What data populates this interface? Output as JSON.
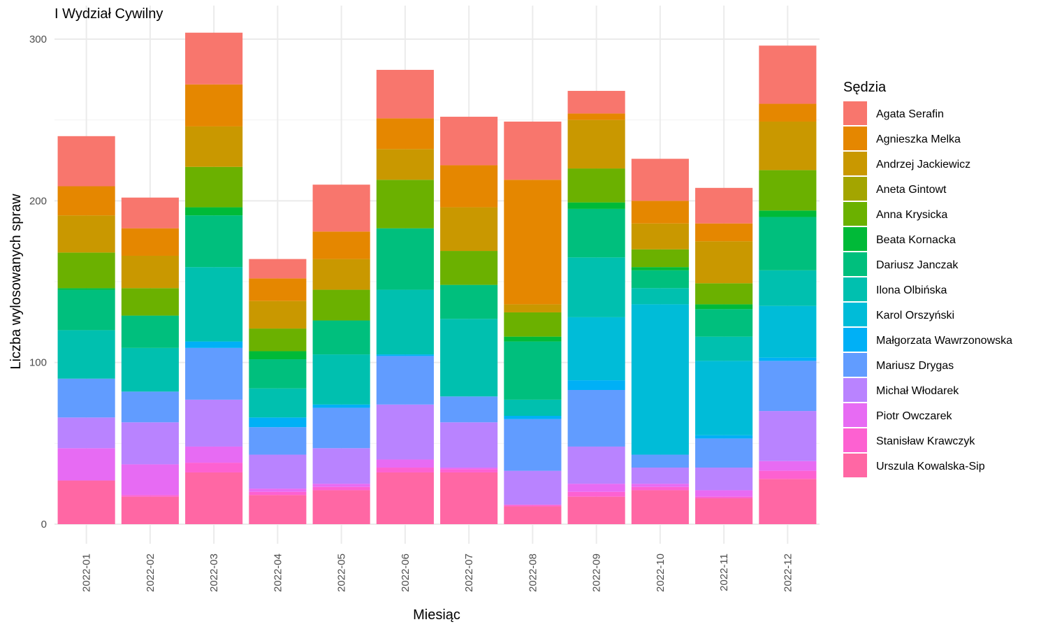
{
  "chart_data": {
    "type": "bar",
    "stacked": true,
    "title": "I Wydział Cywilny",
    "xlabel": "Miesiąc",
    "ylabel": "Liczba wylosowanych spraw",
    "ylim": [
      0,
      320
    ],
    "yticks": [
      0,
      100,
      200,
      300
    ],
    "grid": true,
    "legend_title": "Sędzia",
    "legend_position": "right",
    "categories": [
      "2022-01",
      "2022-02",
      "2022-03",
      "2022-04",
      "2022-05",
      "2022-06",
      "2022-07",
      "2022-08",
      "2022-09",
      "2022-10",
      "2022-11",
      "2022-12"
    ],
    "series": [
      {
        "name": "Agata Serafin",
        "color": "#F8766D",
        "values": [
          31,
          19,
          32,
          12,
          29,
          30,
          30,
          36,
          14,
          26,
          22,
          36
        ]
      },
      {
        "name": "Agnieszka Melka",
        "color": "#E58700",
        "values": [
          18,
          17,
          26,
          14,
          17,
          19,
          26,
          77,
          4,
          14,
          11,
          11
        ]
      },
      {
        "name": "Andrzej Jackiewicz",
        "color": "#C99800",
        "values": [
          23,
          20,
          25,
          17,
          19,
          19,
          27,
          5,
          30,
          16,
          26,
          30
        ]
      },
      {
        "name": "Aneta Gintowt",
        "color": "#A3A500",
        "values": [
          0,
          0,
          0,
          0,
          0,
          0,
          0,
          0,
          0,
          0,
          0,
          0
        ]
      },
      {
        "name": "Anna Krysicka",
        "color": "#6BB100",
        "values": [
          22,
          17,
          25,
          14,
          19,
          30,
          21,
          15,
          21,
          11,
          13,
          25
        ]
      },
      {
        "name": "Beata Kornacka",
        "color": "#00BA38",
        "values": [
          1,
          0,
          5,
          5,
          0,
          0,
          0,
          3,
          4,
          2,
          3,
          4
        ]
      },
      {
        "name": "Dariusz Janczak",
        "color": "#00BF7D",
        "values": [
          25,
          20,
          32,
          18,
          21,
          38,
          21,
          36,
          30,
          11,
          17,
          33
        ]
      },
      {
        "name": "Ilona Olbińska",
        "color": "#00C0AF",
        "values": [
          30,
          27,
          46,
          18,
          31,
          40,
          48,
          10,
          37,
          10,
          15,
          22
        ]
      },
      {
        "name": "Karol Orszyński",
        "color": "#00BCD8",
        "values": [
          0,
          0,
          0,
          0,
          0,
          0,
          0,
          0,
          39,
          93,
          46,
          32
        ]
      },
      {
        "name": "Małgorzata Wawrzonowska",
        "color": "#00B0F6",
        "values": [
          0,
          0,
          4,
          6,
          2,
          1,
          0,
          2,
          6,
          0,
          2,
          2
        ]
      },
      {
        "name": "Mariusz Drygas",
        "color": "#619CFF",
        "values": [
          24,
          19,
          32,
          17,
          25,
          30,
          16,
          32,
          35,
          8,
          18,
          31
        ]
      },
      {
        "name": "Michał Włodarek",
        "color": "#B983FF",
        "values": [
          19,
          26,
          29,
          21,
          22,
          34,
          28,
          21,
          23,
          10,
          14,
          31
        ]
      },
      {
        "name": "Piotr Owczarek",
        "color": "#E76BF3",
        "values": [
          20,
          19,
          10,
          2,
          2,
          5,
          1,
          0,
          5,
          2,
          4,
          6
        ]
      },
      {
        "name": "Stanisław Krawczyk",
        "color": "#FD61D1",
        "values": [
          0,
          1,
          6,
          2,
          2,
          3,
          2,
          1,
          3,
          2,
          1,
          5
        ]
      },
      {
        "name": "Urszula Kowalska-Sip",
        "color": "#FF67A4",
        "values": [
          27,
          17,
          32,
          18,
          21,
          32,
          32,
          11,
          17,
          21,
          16,
          28
        ]
      }
    ]
  }
}
